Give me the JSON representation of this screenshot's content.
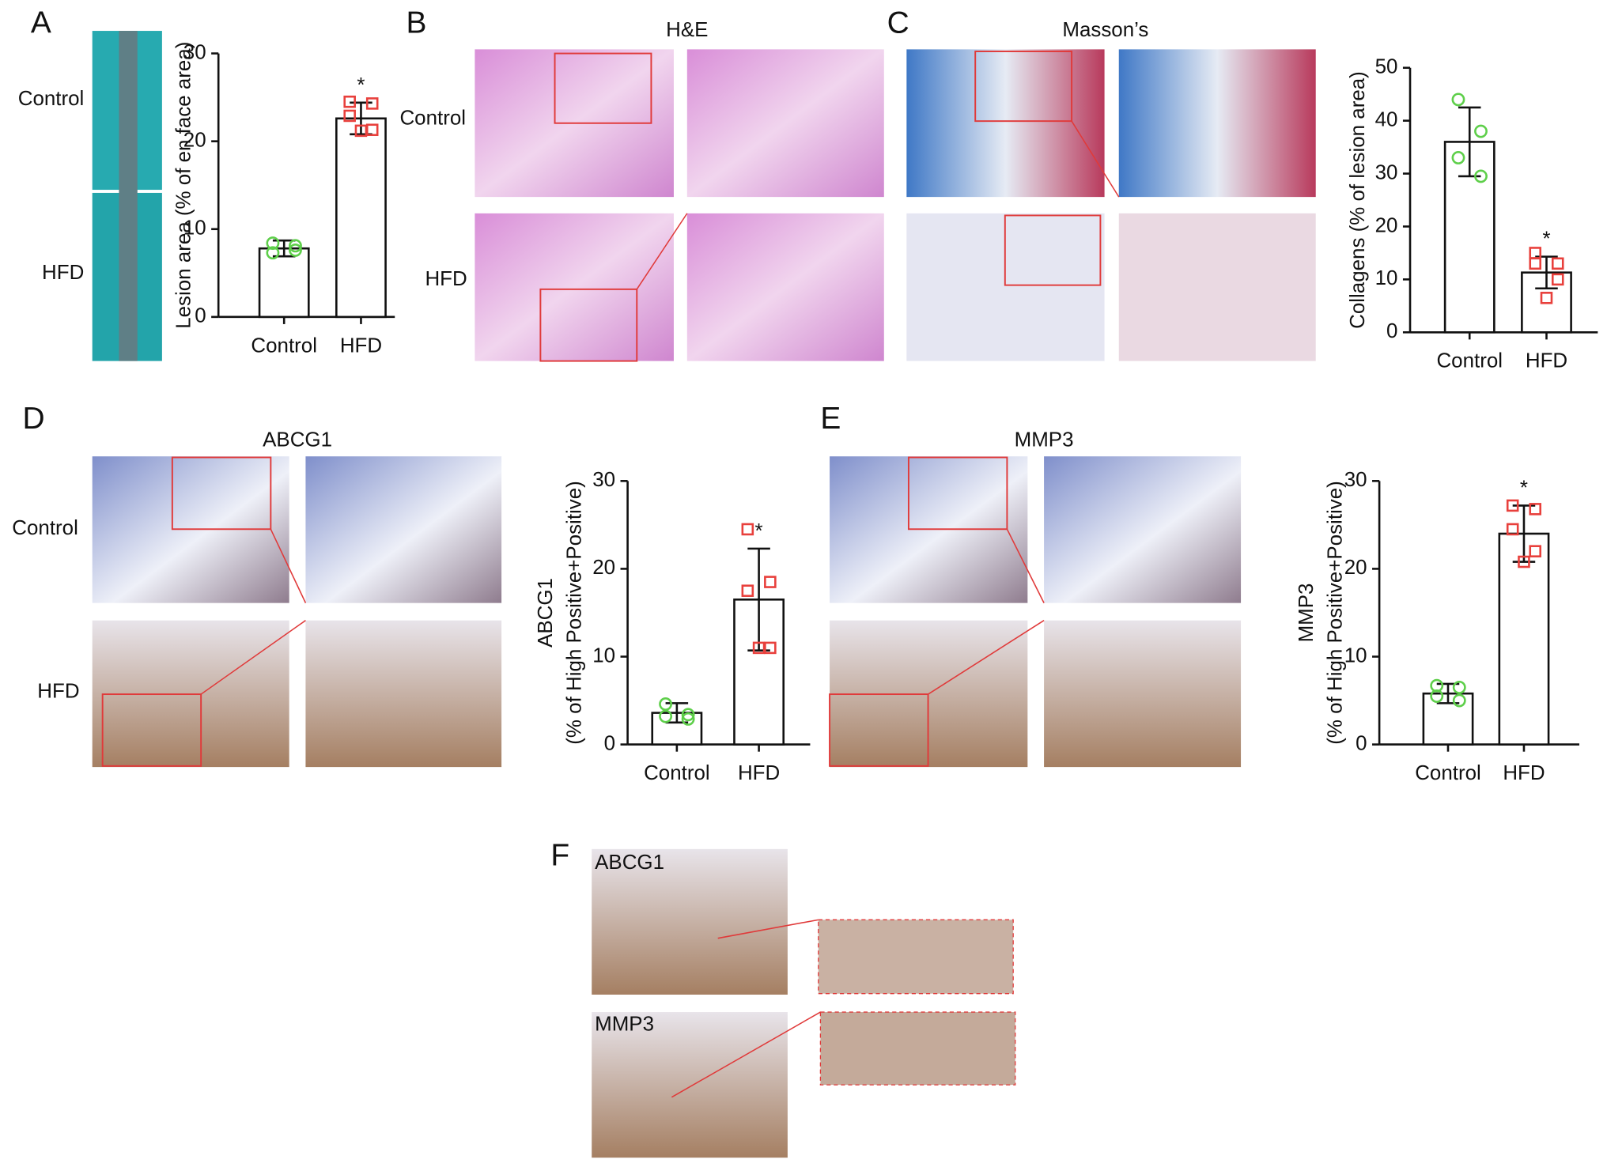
{
  "figure": {
    "panels": [
      {
        "letter": "A",
        "row_labels": [
          "Control",
          "HFD"
        ]
      },
      {
        "letter": "B",
        "title": "H&E",
        "row_labels": [
          "Control",
          "HFD"
        ]
      },
      {
        "letter": "C",
        "title": "Masson’s"
      },
      {
        "letter": "D",
        "title": "ABCG1",
        "row_labels": [
          "Control",
          "HFD"
        ]
      },
      {
        "letter": "E",
        "title": "MMP3"
      },
      {
        "letter": "F",
        "image_labels": [
          "ABCG1",
          "MMP3"
        ]
      }
    ]
  },
  "chart_data": [
    {
      "type": "bar",
      "ylabel": "Lesion area (% of en face area)",
      "categories": [
        "Control",
        "HFD"
      ],
      "values": [
        7.8,
        22.6
      ],
      "errors": [
        0.9,
        1.8
      ],
      "points": [
        [
          8.4,
          7.6,
          7.3,
          8.1
        ],
        [
          24.5,
          24.3,
          22.9,
          21.3,
          21.2
        ]
      ],
      "point_colors": [
        "#5ecf4a",
        "#e8403c"
      ],
      "annotations": [
        null,
        "*"
      ],
      "color": "#ffffff",
      "ylim": [
        0,
        30
      ],
      "yticks": [
        0,
        10,
        20,
        30
      ]
    },
    {
      "type": "bar",
      "ylabel": "Collagens (% of lesion area)",
      "categories": [
        "Control",
        "HFD"
      ],
      "values": [
        36,
        11.3
      ],
      "errors": [
        6.5,
        3
      ],
      "points": [
        [
          44,
          38,
          33,
          29.5
        ],
        [
          15,
          13,
          13,
          10,
          6.5
        ]
      ],
      "point_colors": [
        "#5ecf4a",
        "#e8403c"
      ],
      "annotations": [
        null,
        "*"
      ],
      "color": "#ffffff",
      "ylim": [
        0,
        50
      ],
      "yticks": [
        0,
        10,
        20,
        30,
        40,
        50
      ]
    },
    {
      "type": "bar",
      "ylabel": [
        "ABCG1",
        "(% of High Positive+Positive)"
      ],
      "categories": [
        "Control",
        "HFD"
      ],
      "values": [
        3.6,
        16.5
      ],
      "errors": [
        1.1,
        5.8
      ],
      "points": [
        [
          4.6,
          3.4,
          3.2,
          2.9
        ],
        [
          24.5,
          18.5,
          17.5,
          11,
          11
        ]
      ],
      "point_colors": [
        "#5ecf4a",
        "#e8403c"
      ],
      "annotations": [
        null,
        "*"
      ],
      "color": "#ffffff",
      "ylim": [
        0,
        30
      ],
      "yticks": [
        0,
        10,
        20,
        30
      ]
    },
    {
      "type": "bar",
      "ylabel": [
        "MMP3",
        "(% of High Positive+Positive)"
      ],
      "categories": [
        "Control",
        "HFD"
      ],
      "values": [
        5.8,
        24
      ],
      "errors": [
        1.1,
        3.2
      ],
      "points": [
        [
          6.7,
          6.5,
          5.5,
          5
        ],
        [
          27.2,
          26.8,
          24.5,
          22,
          20.8
        ]
      ],
      "point_colors": [
        "#5ecf4a",
        "#e8403c"
      ],
      "annotations": [
        null,
        "*"
      ],
      "color": "#ffffff",
      "ylim": [
        0,
        30
      ],
      "yticks": [
        0,
        10,
        20,
        30
      ]
    }
  ]
}
